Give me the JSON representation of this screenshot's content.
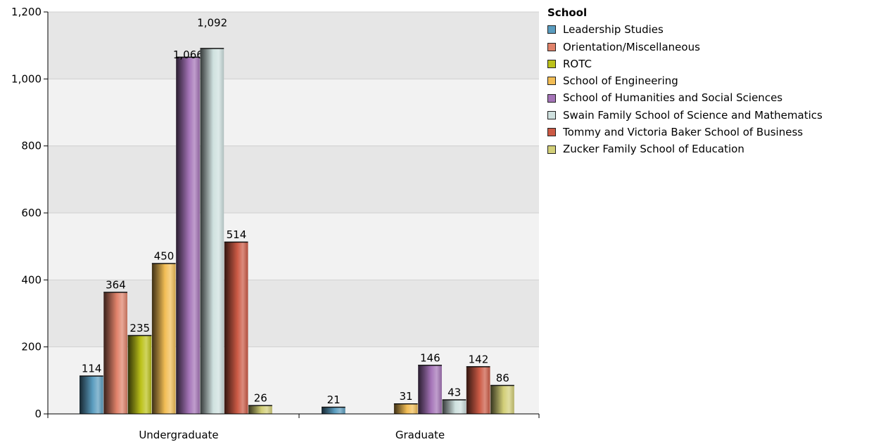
{
  "chart_data": {
    "type": "bar",
    "categories": [
      "Undergraduate",
      "Graduate"
    ],
    "ylim": [
      0,
      1200
    ],
    "yticks": [
      0,
      200,
      400,
      600,
      800,
      1000,
      1200
    ],
    "ytick_labels": [
      "0",
      "200",
      "400",
      "600",
      "800",
      "1,000",
      "1,200"
    ],
    "grid": true,
    "legend_position": "right",
    "legend_title": "School",
    "series": [
      {
        "name": "Leadership Studies",
        "color": "#5a9cbf",
        "values": [
          114,
          21
        ],
        "labels": [
          "114",
          "21"
        ]
      },
      {
        "name": "Orientation/Miscellaneous",
        "color": "#e0826a",
        "values": [
          364,
          null
        ],
        "labels": [
          "364",
          ""
        ]
      },
      {
        "name": "ROTC",
        "color": "#bcc21a",
        "values": [
          235,
          null
        ],
        "labels": [
          "235",
          ""
        ]
      },
      {
        "name": "School of Engineering",
        "color": "#f2bd55",
        "values": [
          450,
          31
        ],
        "labels": [
          "450",
          "31"
        ]
      },
      {
        "name": "School of Humanities and Social Sciences",
        "color": "#a574b8",
        "values": [
          1066,
          146
        ],
        "labels": [
          "1,066",
          "146"
        ]
      },
      {
        "name": "Swain Family School of Science and Mathematics",
        "color": "#cfe1df",
        "values": [
          1092,
          43
        ],
        "labels": [
          "1,092",
          "43"
        ]
      },
      {
        "name": "Tommy and Victoria Baker School of Business",
        "color": "#cc5a45",
        "values": [
          514,
          142
        ],
        "labels": [
          "514",
          "142"
        ]
      },
      {
        "name": "Zucker Family School of Education",
        "color": "#d2cf78",
        "values": [
          26,
          86
        ],
        "labels": [
          "26",
          "86"
        ]
      }
    ]
  }
}
